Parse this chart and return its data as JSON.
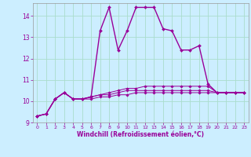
{
  "xlabel": "Windchill (Refroidissement éolien,°C)",
  "background_color": "#cceeff",
  "grid_color": "#aaddcc",
  "line_color": "#990099",
  "xlim": [
    -0.5,
    23.5
  ],
  "ylim": [
    9.0,
    14.6
  ],
  "yticks": [
    9,
    10,
    11,
    12,
    13,
    14
  ],
  "xticks": [
    0,
    1,
    2,
    3,
    4,
    5,
    6,
    7,
    8,
    9,
    10,
    11,
    12,
    13,
    14,
    15,
    16,
    17,
    18,
    19,
    20,
    21,
    22,
    23
  ],
  "series": [
    [
      9.3,
      9.4,
      10.1,
      10.4,
      10.1,
      10.1,
      10.2,
      13.3,
      14.4,
      12.4,
      13.3,
      14.4,
      14.4,
      14.4,
      13.4,
      13.3,
      12.4,
      12.4,
      12.6,
      10.8,
      10.4,
      10.4,
      10.4,
      10.4
    ],
    [
      9.3,
      9.4,
      10.1,
      10.4,
      10.1,
      10.1,
      10.2,
      10.3,
      10.3,
      10.4,
      10.5,
      10.5,
      10.5,
      10.5,
      10.5,
      10.5,
      10.5,
      10.5,
      10.5,
      10.5,
      10.4,
      10.4,
      10.4,
      10.4
    ],
    [
      9.3,
      9.4,
      10.1,
      10.4,
      10.1,
      10.1,
      10.1,
      10.2,
      10.2,
      10.3,
      10.3,
      10.4,
      10.4,
      10.4,
      10.4,
      10.4,
      10.4,
      10.4,
      10.4,
      10.4,
      10.4,
      10.4,
      10.4,
      10.4
    ],
    [
      9.3,
      9.4,
      10.1,
      10.4,
      10.1,
      10.1,
      10.2,
      10.3,
      10.4,
      10.5,
      10.6,
      10.6,
      10.7,
      10.7,
      10.7,
      10.7,
      10.7,
      10.7,
      10.7,
      10.7,
      10.4,
      10.4,
      10.4,
      10.4
    ]
  ]
}
